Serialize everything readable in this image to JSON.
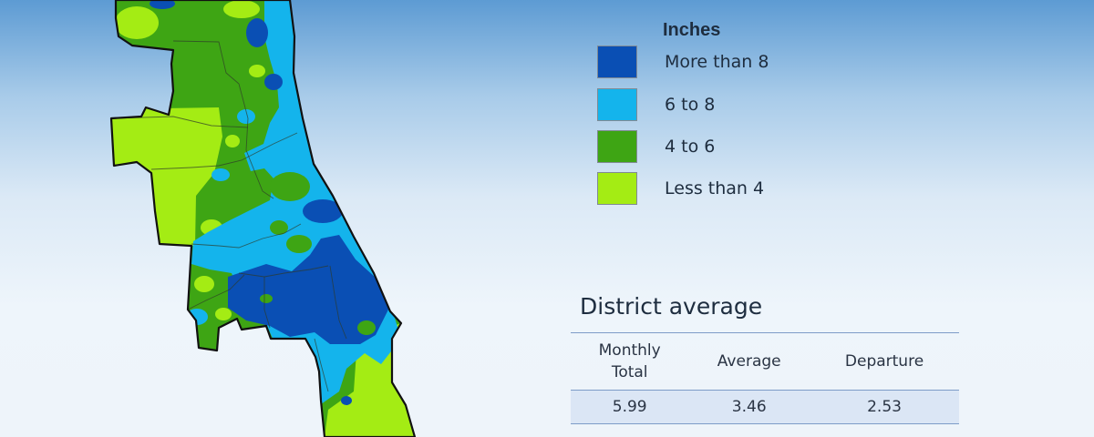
{
  "map": {
    "fill_colors": {
      "more_than_8": "#0a4fb4",
      "6_to_8": "#14b4ec",
      "4_to_6": "#3ea514",
      "less_than_4": "#a4ec14"
    }
  },
  "legend": {
    "title": "Inches",
    "items": [
      {
        "label": "More than 8",
        "color": "#0a4fb4"
      },
      {
        "label": "6 to 8",
        "color": "#14b4ec"
      },
      {
        "label": "4 to 6",
        "color": "#3ea514"
      },
      {
        "label": "Less than 4",
        "color": "#a4ec14"
      }
    ]
  },
  "district_average": {
    "title": "District average",
    "headers": [
      "Monthly\nTotal",
      "Average",
      "Departure"
    ],
    "values": [
      "5.99",
      "3.46",
      "2.53"
    ]
  }
}
